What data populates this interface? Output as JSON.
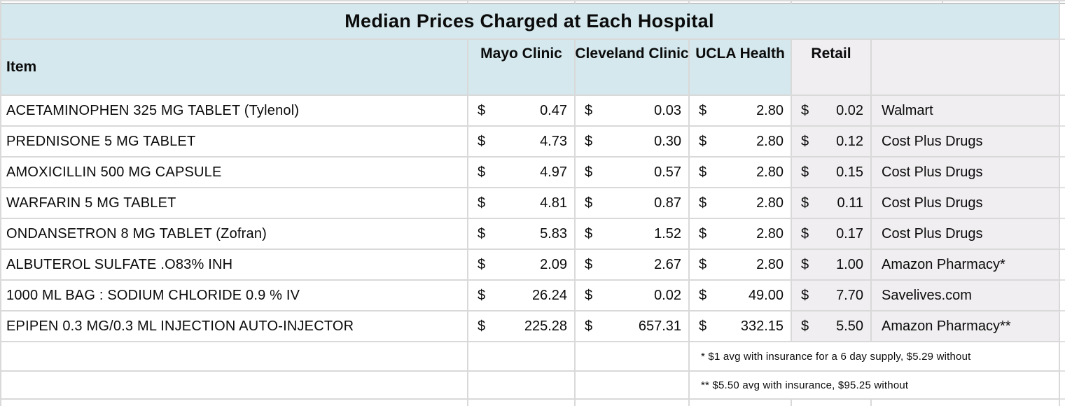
{
  "title": "Median Prices Charged at Each Hospital",
  "currency": "$",
  "headers": {
    "item": "Item",
    "mayo": "Mayo Clinic",
    "cleveland": "Cleveland Clinic",
    "ucla": "UCLA Health",
    "retail": "Retail",
    "retailer": ""
  },
  "rows": [
    {
      "item": "ACETAMINOPHEN 325 MG TABLET (Tylenol)",
      "mayo": "0.47",
      "cleveland": "0.03",
      "ucla": "2.80",
      "retail": "0.02",
      "retailer": "Walmart"
    },
    {
      "item": "PREDNISONE 5 MG TABLET",
      "mayo": "4.73",
      "cleveland": "0.30",
      "ucla": "2.80",
      "retail": "0.12",
      "retailer": "Cost Plus Drugs"
    },
    {
      "item": "AMOXICILLIN 500 MG CAPSULE",
      "mayo": "4.97",
      "cleveland": "0.57",
      "ucla": "2.80",
      "retail": "0.15",
      "retailer": "Cost Plus Drugs"
    },
    {
      "item": "WARFARIN 5 MG TABLET",
      "mayo": "4.81",
      "cleveland": "0.87",
      "ucla": "2.80",
      "retail": "0.11",
      "retailer": "Cost Plus Drugs"
    },
    {
      "item": "ONDANSETRON 8 MG TABLET (Zofran)",
      "mayo": "5.83",
      "cleveland": "1.52",
      "ucla": "2.80",
      "retail": "0.17",
      "retailer": "Cost Plus Drugs"
    },
    {
      "item": "ALBUTEROL SULFATE .O83% INH",
      "mayo": "2.09",
      "cleveland": "2.67",
      "ucla": "2.80",
      "retail": "1.00",
      "retailer": "Amazon Pharmacy*"
    },
    {
      "item": "1000 ML BAG : SODIUM CHLORIDE 0.9 % IV",
      "mayo": "26.24",
      "cleveland": "0.02",
      "ucla": "49.00",
      "retail": "7.70",
      "retailer": "Savelives.com"
    },
    {
      "item": "EPIPEN 0.3 MG/0.3 ML INJECTION AUTO-INJECTOR",
      "mayo": "225.28",
      "cleveland": "657.31",
      "ucla": "332.15",
      "retail": "5.50",
      "retailer": "Amazon Pharmacy**"
    }
  ],
  "footnotes": {
    "first": "* $1 avg with insurance for a 6 day supply, $5.29 without",
    "second": "** $5.50 avg with insurance, $95.25 without"
  },
  "colors": {
    "header_blue": "#d4e8ed",
    "column_gray": "#f0eef0",
    "gridline": "#d9d9d9",
    "ink": "#0b0b0b"
  }
}
